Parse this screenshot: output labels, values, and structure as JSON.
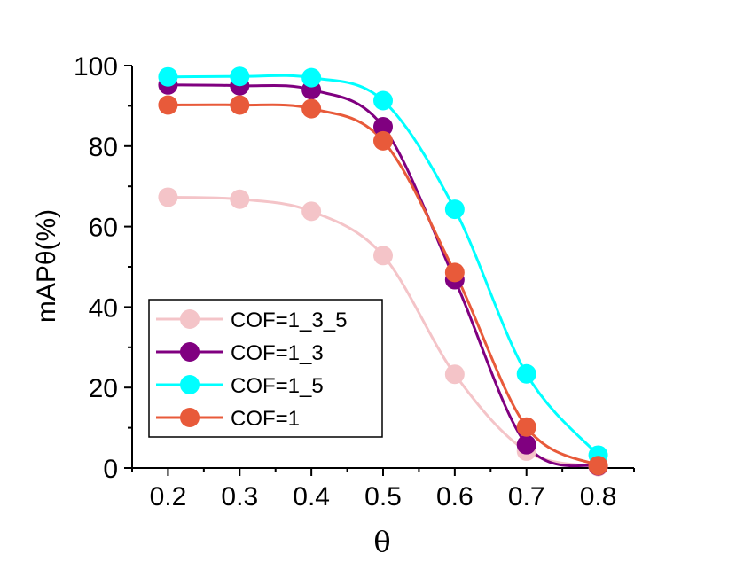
{
  "chart_data": {
    "type": "line",
    "title": "",
    "xlabel": "θ",
    "ylabel": "mAPθ(%)",
    "x": [
      0.2,
      0.3,
      0.4,
      0.5,
      0.6,
      0.7,
      0.8
    ],
    "xlim": [
      0.15,
      0.85
    ],
    "ylim": [
      0,
      100
    ],
    "x_ticks": [
      "0.2",
      "0.3",
      "0.4",
      "0.5",
      "0.6",
      "0.7",
      "0.8"
    ],
    "y_ticks": [
      "0",
      "20",
      "40",
      "60",
      "80",
      "100"
    ],
    "grid": false,
    "legend_position": "bottom-left",
    "series": [
      {
        "name": "COF=1_3_5",
        "color": "#f4c4c8",
        "values": [
          67.3,
          66.8,
          63.8,
          52.8,
          23.3,
          4.2,
          0.3
        ]
      },
      {
        "name": "COF=1_3",
        "color": "#800080",
        "values": [
          95.2,
          95.0,
          94.0,
          84.8,
          46.8,
          5.8,
          0.5
        ]
      },
      {
        "name": "COF=1_5",
        "color": "#00ffff",
        "values": [
          97.2,
          97.3,
          97.0,
          91.3,
          64.3,
          23.4,
          3.2
        ]
      },
      {
        "name": "COF=1",
        "color": "#e85a3a",
        "values": [
          90.2,
          90.2,
          89.3,
          81.3,
          48.6,
          10.2,
          0.6
        ]
      }
    ]
  }
}
